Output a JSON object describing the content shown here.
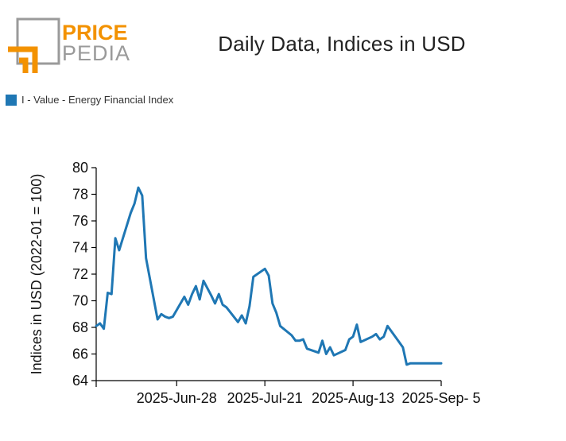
{
  "logo": {
    "word_top": "PRICE",
    "word_bottom": "PEDIA",
    "accent": "#f39200",
    "gray": "#9a9a9a"
  },
  "colors": {
    "series": "#1f77b4",
    "axis": "#000000"
  },
  "chart_data": {
    "type": "line",
    "title": "Daily Data, Indices in USD",
    "ylabel": "Indices in USD (2022-01 = 100)",
    "xlabel": "",
    "ylim": [
      64,
      80
    ],
    "yticks": [
      64,
      66,
      68,
      70,
      72,
      74,
      76,
      78,
      80
    ],
    "xticks": [
      "2025-Jun-28",
      "2025-Jul-21",
      "2025-Aug-13",
      "2025-Sep- 5"
    ],
    "legend_position": "top-left",
    "grid": false,
    "series": [
      {
        "name": "I - Value - Energy Financial Index",
        "color": "#1f77b4",
        "x": [
          "2025-Jun-07",
          "2025-Jun-08",
          "2025-Jun-09",
          "2025-Jun-10",
          "2025-Jun-11",
          "2025-Jun-12",
          "2025-Jun-13",
          "2025-Jun-16",
          "2025-Jun-17",
          "2025-Jun-18",
          "2025-Jun-19",
          "2025-Jun-20",
          "2025-Jun-23",
          "2025-Jun-24",
          "2025-Jun-25",
          "2025-Jun-26",
          "2025-Jun-27",
          "2025-Jun-30",
          "2025-Jul-01",
          "2025-Jul-02",
          "2025-Jul-03",
          "2025-Jul-04",
          "2025-Jul-05",
          "2025-Jul-07",
          "2025-Jul-08",
          "2025-Jul-09",
          "2025-Jul-10",
          "2025-Jul-11",
          "2025-Jul-14",
          "2025-Jul-15",
          "2025-Jul-16",
          "2025-Jul-17",
          "2025-Jul-18",
          "2025-Jul-21",
          "2025-Jul-22",
          "2025-Jul-23",
          "2025-Jul-24",
          "2025-Jul-25",
          "2025-Jul-28",
          "2025-Jul-29",
          "2025-Jul-30",
          "2025-Jul-31",
          "2025-Aug-01",
          "2025-Aug-04",
          "2025-Aug-05",
          "2025-Aug-06",
          "2025-Aug-07",
          "2025-Aug-08",
          "2025-Aug-11",
          "2025-Aug-12",
          "2025-Aug-13",
          "2025-Aug-14",
          "2025-Aug-15",
          "2025-Aug-18",
          "2025-Aug-19",
          "2025-Aug-20",
          "2025-Aug-21",
          "2025-Aug-22",
          "2025-Aug-25",
          "2025-Aug-26",
          "2025-Aug-27",
          "2025-Aug-28",
          "2025-Aug-29",
          "2025-Sep-01",
          "2025-Sep-02",
          "2025-Sep-03",
          "2025-Sep-04",
          "2025-Sep-05"
        ],
        "y": [
          68.1,
          68.3,
          67.9,
          70.6,
          70.5,
          74.7,
          73.8,
          76.6,
          77.3,
          78.5,
          77.9,
          73.2,
          68.6,
          69.0,
          68.8,
          68.7,
          68.8,
          70.3,
          69.7,
          70.5,
          71.1,
          70.1,
          71.5,
          70.4,
          69.8,
          70.5,
          69.7,
          69.5,
          68.4,
          68.9,
          68.3,
          69.6,
          71.8,
          72.4,
          71.9,
          69.8,
          69.1,
          68.1,
          67.4,
          67.0,
          67.0,
          67.1,
          66.4,
          66.1,
          67.0,
          66.0,
          66.5,
          65.9,
          66.3,
          67.1,
          67.3,
          68.2,
          66.9,
          67.3,
          67.5,
          67.1,
          67.3,
          68.1,
          66.9,
          66.5,
          65.2,
          65.3,
          65.3,
          65.3,
          65.3,
          65.3,
          65.3,
          65.3
        ]
      }
    ]
  }
}
